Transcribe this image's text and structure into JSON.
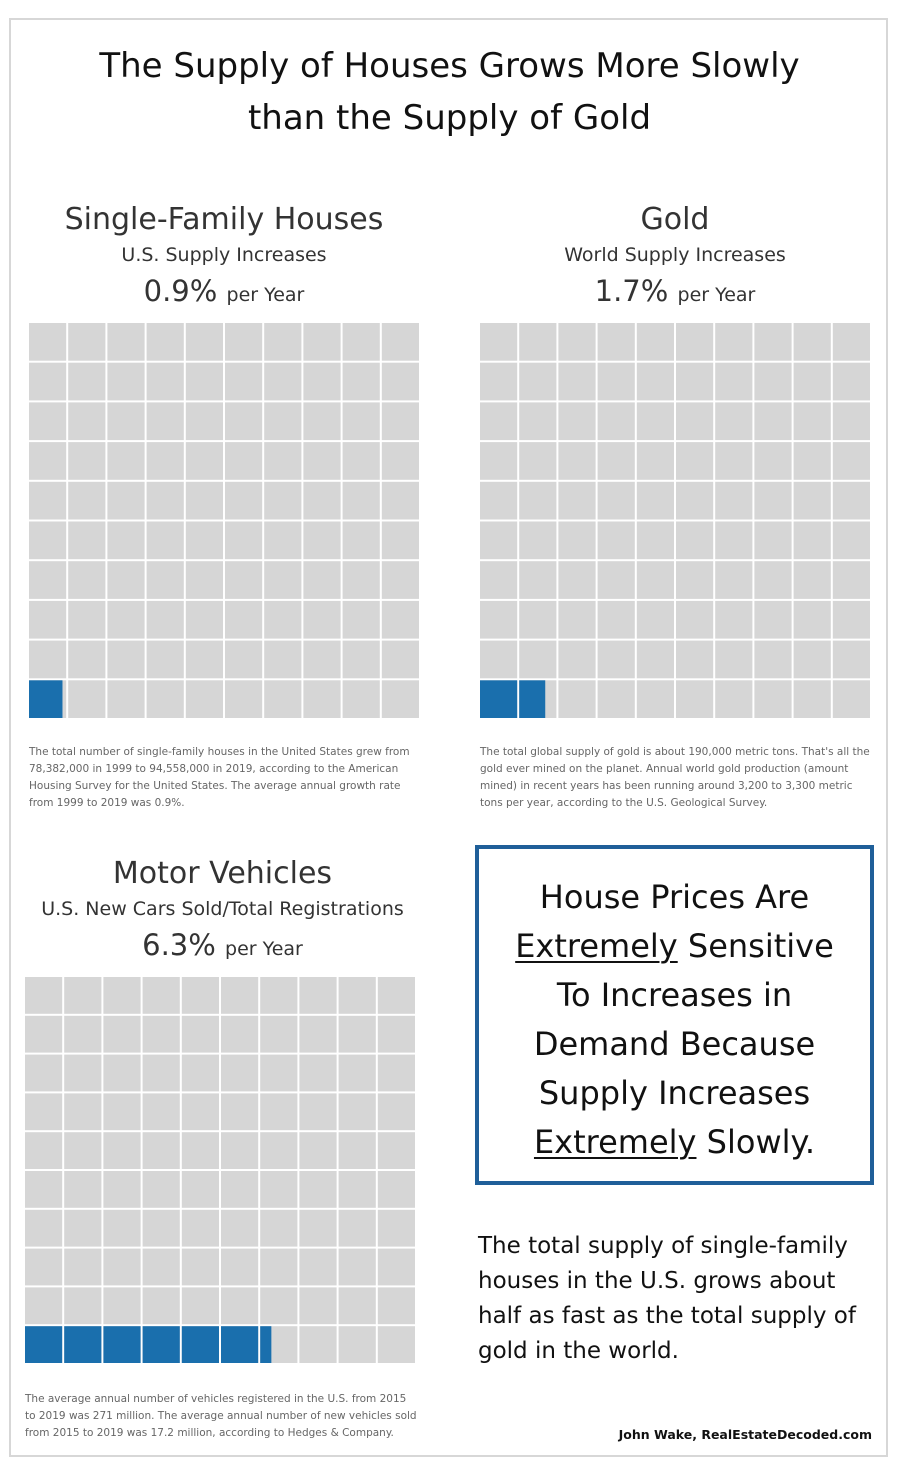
{
  "title_line1": "The Supply of Houses Grows More Slowly",
  "title_line2": "than the Supply of Gold",
  "colors": {
    "filled": "#1a6fad",
    "empty": "#d6d6d6",
    "border": "#1f5f99"
  },
  "chart_data": [
    {
      "type": "waffle",
      "title": "Single-Family Houses",
      "subtitle": "U.S. Supply Increases",
      "rate": "0.9%",
      "rate_unit": "per Year",
      "value_percent": 0.9,
      "grid": [
        10,
        10
      ],
      "note": "The total number of single-family houses in the United States grew from 78,382,000 in 1999 to 94,558,000 in 2019, according to the American Housing Survey for the United States. The average annual growth rate from 1999 to 2019 was 0.9%."
    },
    {
      "type": "waffle",
      "title": "Gold",
      "subtitle": "World Supply Increases",
      "rate": "1.7%",
      "rate_unit": "per Year",
      "value_percent": 1.7,
      "grid": [
        10,
        10
      ],
      "note": "The total global supply of gold is about 190,000 metric tons. That's all the gold ever mined on the planet. Annual world gold production (amount mined) in recent years has been running around 3,200 to 3,300 metric tons per year, according to the U.S. Geological Survey."
    },
    {
      "type": "waffle",
      "title": "Motor Vehicles",
      "subtitle": "U.S. New Cars Sold/Total Registrations",
      "rate": "6.3%",
      "rate_unit": "per Year",
      "value_percent": 6.3,
      "grid": [
        10,
        10
      ],
      "note": "The average annual number of vehicles registered in the U.S. from 2015 to 2019 was 271 million. The average annual number of new vehicles sold from 2015 to 2019 was 17.2 million, according to Hedges & Company."
    }
  ],
  "callout": {
    "line1": "House Prices Are",
    "line2_u": "Extremely",
    "line2_rest": " Sensitive",
    "line3": "To Increases in",
    "line4": "Demand Because",
    "line5": "Supply Increases",
    "line6_u": "Extremely",
    "line6_rest": " Slowly."
  },
  "summary": "The total supply of single-family houses in the U.S. grows about half as fast as the total supply of gold in the world.",
  "credit": "John Wake, RealEstateDecoded.com"
}
